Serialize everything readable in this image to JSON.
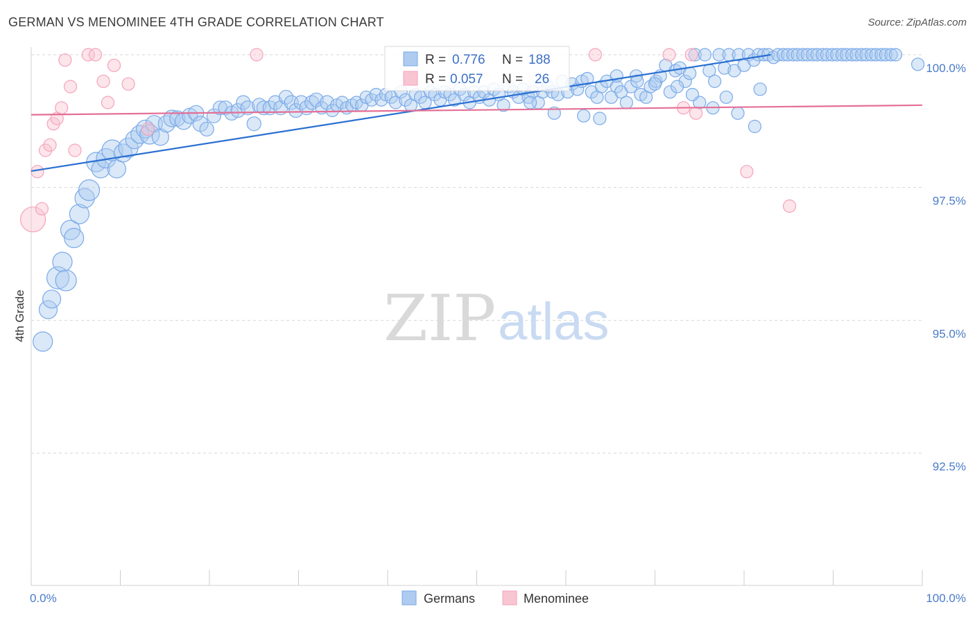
{
  "title": "GERMAN VS MENOMINEE 4TH GRADE CORRELATION CHART",
  "source": "Source: ZipAtlas.com",
  "watermark": {
    "zip": "ZIP",
    "atlas": "atlas"
  },
  "colors": {
    "german": "#7aaae8",
    "german_line": "#2a6fd1",
    "menominee": "#f4a3ba",
    "menominee_line": "#e46f96",
    "tick_label": "#4a7bc8"
  },
  "chart_data": {
    "type": "scatter",
    "title": "GERMAN VS MENOMINEE 4TH GRADE CORRELATION CHART",
    "xlabel": "",
    "ylabel": "4th Grade",
    "xlim": [
      0,
      100
    ],
    "ylim": [
      90.2,
      100.4
    ],
    "x_tick_labels": [
      "0.0%",
      "100.0%"
    ],
    "y_ticks": [
      92.5,
      95.0,
      97.5,
      100.0
    ],
    "y_tick_labels": [
      "92.5%",
      "95.0%",
      "97.5%",
      "100.0%"
    ],
    "grid": "horizontal-dashed",
    "legend_position": "bottom-center",
    "stats": [
      {
        "r_label": "R =",
        "r_value": "0.776",
        "n_label": "N =",
        "n_value": "188"
      },
      {
        "r_label": "R =",
        "r_value": "0.057",
        "n_label": "N =",
        "n_value": "26"
      }
    ],
    "series": [
      {
        "name": "Germans",
        "trend": {
          "x": [
            0,
            83
          ],
          "y": [
            97.81,
            100.0
          ]
        },
        "points": [
          [
            1.3,
            94.6,
            14
          ],
          [
            1.9,
            95.2,
            13
          ],
          [
            2.3,
            95.4,
            13
          ],
          [
            3.0,
            95.8,
            16
          ],
          [
            3.5,
            96.1,
            14
          ],
          [
            3.9,
            95.75,
            15
          ],
          [
            4.4,
            96.7,
            14
          ],
          [
            4.8,
            96.55,
            14
          ],
          [
            5.4,
            97.0,
            14
          ],
          [
            6.0,
            97.3,
            14
          ],
          [
            6.5,
            97.45,
            15
          ],
          [
            7.3,
            97.98,
            14
          ],
          [
            7.8,
            97.85,
            13
          ],
          [
            8.4,
            98.05,
            14
          ],
          [
            9.1,
            98.2,
            15
          ],
          [
            9.6,
            97.85,
            13
          ],
          [
            10.3,
            98.15,
            13
          ],
          [
            10.9,
            98.25,
            14
          ],
          [
            11.6,
            98.4,
            13
          ],
          [
            12.2,
            98.5,
            13
          ],
          [
            12.8,
            98.6,
            13
          ],
          [
            13.3,
            98.5,
            14
          ],
          [
            13.8,
            98.7,
            12
          ],
          [
            14.5,
            98.45,
            12
          ],
          [
            15.2,
            98.7,
            12
          ],
          [
            15.8,
            98.8,
            12
          ],
          [
            16.4,
            98.8,
            11
          ],
          [
            17.1,
            98.75,
            12
          ],
          [
            17.8,
            98.85,
            11
          ],
          [
            18.5,
            98.9,
            11
          ],
          [
            19.0,
            98.7,
            11
          ],
          [
            19.7,
            98.6,
            10
          ],
          [
            20.5,
            98.85,
            10
          ],
          [
            21.2,
            99.0,
            10
          ],
          [
            21.8,
            99.0,
            10
          ],
          [
            22.5,
            98.9,
            10
          ],
          [
            23.2,
            98.95,
            10
          ],
          [
            23.8,
            99.1,
            10
          ],
          [
            24.3,
            99.0,
            10
          ],
          [
            25.0,
            98.7,
            10
          ],
          [
            25.6,
            99.05,
            10
          ],
          [
            26.1,
            99.0,
            10
          ],
          [
            26.8,
            99.0,
            10
          ],
          [
            27.4,
            99.1,
            10
          ],
          [
            28.0,
            99.0,
            10
          ],
          [
            28.6,
            99.2,
            10
          ],
          [
            29.2,
            99.1,
            10
          ],
          [
            29.7,
            98.95,
            10
          ],
          [
            30.3,
            99.1,
            10
          ],
          [
            30.9,
            99.0,
            10
          ],
          [
            31.5,
            99.1,
            10
          ],
          [
            32.0,
            99.15,
            10
          ],
          [
            32.6,
            99.0,
            9
          ],
          [
            33.2,
            99.1,
            10
          ],
          [
            33.8,
            98.95,
            9
          ],
          [
            34.3,
            99.05,
            9
          ],
          [
            34.9,
            99.1,
            9
          ],
          [
            35.4,
            99.0,
            9
          ],
          [
            36.0,
            99.05,
            9
          ],
          [
            36.5,
            99.1,
            9
          ],
          [
            37.1,
            99.05,
            9
          ],
          [
            37.6,
            99.2,
            9
          ],
          [
            38.2,
            99.15,
            9
          ],
          [
            38.7,
            99.25,
            9
          ],
          [
            39.3,
            99.15,
            9
          ],
          [
            39.8,
            99.25,
            9
          ],
          [
            40.4,
            99.2,
            9
          ],
          [
            40.9,
            99.1,
            9
          ],
          [
            41.5,
            99.3,
            9
          ],
          [
            42.0,
            99.15,
            9
          ],
          [
            42.6,
            99.05,
            9
          ],
          [
            43.1,
            99.25,
            9
          ],
          [
            43.7,
            99.2,
            9
          ],
          [
            44.2,
            99.1,
            9
          ],
          [
            44.8,
            99.3,
            9
          ],
          [
            45.3,
            99.25,
            9
          ],
          [
            45.9,
            99.15,
            9
          ],
          [
            46.4,
            99.3,
            9
          ],
          [
            47.0,
            99.25,
            9
          ],
          [
            47.5,
            99.15,
            9
          ],
          [
            48.1,
            99.35,
            9
          ],
          [
            48.6,
            99.25,
            9
          ],
          [
            49.2,
            99.1,
            9
          ],
          [
            49.7,
            99.3,
            9
          ],
          [
            50.3,
            99.2,
            9
          ],
          [
            50.8,
            99.3,
            9
          ],
          [
            51.4,
            99.15,
            9
          ],
          [
            51.9,
            99.35,
            9
          ],
          [
            52.5,
            99.25,
            9
          ],
          [
            53.0,
            99.05,
            9
          ],
          [
            53.6,
            99.4,
            9
          ],
          [
            54.1,
            99.3,
            9
          ],
          [
            54.7,
            99.2,
            9
          ],
          [
            55.2,
            99.35,
            9
          ],
          [
            55.8,
            99.2,
            9
          ],
          [
            56.3,
            99.3,
            9
          ],
          [
            56.9,
            99.1,
            9
          ],
          [
            57.4,
            99.3,
            9
          ],
          [
            58.0,
            99.4,
            9
          ],
          [
            58.5,
            99.3,
            9
          ],
          [
            59.1,
            99.25,
            9
          ],
          [
            59.6,
            99.5,
            9
          ],
          [
            60.2,
            99.3,
            9
          ],
          [
            60.7,
            99.45,
            9
          ],
          [
            61.3,
            99.35,
            9
          ],
          [
            61.8,
            99.5,
            9
          ],
          [
            62.4,
            99.55,
            9
          ],
          [
            62.9,
            99.3,
            9
          ],
          [
            63.5,
            99.2,
            9
          ],
          [
            64.0,
            99.4,
            9
          ],
          [
            64.6,
            99.5,
            9
          ],
          [
            65.1,
            99.2,
            9
          ],
          [
            65.7,
            99.4,
            9
          ],
          [
            66.2,
            99.3,
            9
          ],
          [
            66.8,
            99.1,
            9
          ],
          [
            67.3,
            99.4,
            9
          ],
          [
            67.9,
            99.6,
            9
          ],
          [
            68.4,
            99.25,
            9
          ],
          [
            69.0,
            99.2,
            9
          ],
          [
            69.5,
            99.4,
            9
          ],
          [
            70.1,
            99.5,
            9
          ],
          [
            70.6,
            99.6,
            9
          ],
          [
            71.2,
            99.8,
            9
          ],
          [
            71.7,
            99.3,
            9
          ],
          [
            72.3,
            99.7,
            9
          ],
          [
            72.8,
            99.75,
            9
          ],
          [
            73.4,
            99.5,
            9
          ],
          [
            73.9,
            99.65,
            9
          ],
          [
            74.5,
            100.0,
            9
          ],
          [
            75.0,
            99.1,
            9
          ],
          [
            75.6,
            100.0,
            9
          ],
          [
            76.1,
            99.7,
            9
          ],
          [
            76.7,
            99.5,
            9
          ],
          [
            77.2,
            100.0,
            9
          ],
          [
            77.8,
            99.75,
            9
          ],
          [
            78.3,
            100.0,
            9
          ],
          [
            78.9,
            99.7,
            9
          ],
          [
            79.4,
            100.0,
            9
          ],
          [
            80.0,
            99.8,
            9
          ],
          [
            80.5,
            100.0,
            9
          ],
          [
            81.1,
            99.9,
            9
          ],
          [
            81.6,
            100.0,
            9
          ],
          [
            82.2,
            100.0,
            9
          ],
          [
            82.7,
            100.0,
            9
          ],
          [
            83.3,
            99.95,
            9
          ],
          [
            83.8,
            100.0,
            9
          ],
          [
            84.4,
            100.0,
            9
          ],
          [
            84.9,
            100.0,
            9
          ],
          [
            85.5,
            100.0,
            9
          ],
          [
            86.0,
            100.0,
            9
          ],
          [
            86.6,
            100.0,
            9
          ],
          [
            87.1,
            100.0,
            9
          ],
          [
            87.7,
            100.0,
            9
          ],
          [
            88.2,
            100.0,
            9
          ],
          [
            88.8,
            100.0,
            9
          ],
          [
            89.3,
            100.0,
            9
          ],
          [
            89.9,
            100.0,
            9
          ],
          [
            90.4,
            100.0,
            9
          ],
          [
            91.0,
            100.0,
            9
          ],
          [
            91.5,
            100.0,
            9
          ],
          [
            92.1,
            100.0,
            9
          ],
          [
            92.6,
            100.0,
            9
          ],
          [
            93.2,
            100.0,
            9
          ],
          [
            93.7,
            100.0,
            9
          ],
          [
            94.3,
            100.0,
            9
          ],
          [
            94.8,
            100.0,
            9
          ],
          [
            95.4,
            100.0,
            9
          ],
          [
            95.9,
            100.0,
            9
          ],
          [
            96.5,
            100.0,
            9
          ],
          [
            97.0,
            100.0,
            9
          ],
          [
            99.5,
            99.82,
            9
          ],
          [
            56.0,
            99.1,
            9
          ],
          [
            58.7,
            98.9,
            9
          ],
          [
            62.0,
            98.85,
            9
          ],
          [
            63.8,
            98.8,
            9
          ],
          [
            78.0,
            99.2,
            9
          ],
          [
            79.3,
            98.9,
            9
          ],
          [
            81.2,
            98.65,
            9
          ],
          [
            81.8,
            99.35,
            9
          ],
          [
            65.7,
            99.6,
            9
          ],
          [
            68.0,
            99.5,
            9
          ],
          [
            70.0,
            99.45,
            9
          ],
          [
            72.5,
            99.4,
            9
          ],
          [
            74.2,
            99.25,
            9
          ],
          [
            76.5,
            99.0,
            9
          ]
        ]
      },
      {
        "name": "Menominee",
        "trend": {
          "x": [
            0,
            100
          ],
          "y": [
            98.87,
            99.05
          ]
        },
        "points": [
          [
            0.2,
            96.9,
            18
          ],
          [
            0.7,
            97.8,
            9
          ],
          [
            1.2,
            97.1,
            9
          ],
          [
            1.6,
            98.2,
            9
          ],
          [
            2.1,
            98.3,
            9
          ],
          [
            2.5,
            98.7,
            9
          ],
          [
            2.9,
            98.8,
            9
          ],
          [
            3.4,
            99.0,
            9
          ],
          [
            3.8,
            99.9,
            9
          ],
          [
            4.4,
            99.4,
            9
          ],
          [
            4.9,
            98.2,
            9
          ],
          [
            6.4,
            100.0,
            9
          ],
          [
            7.2,
            100.0,
            9
          ],
          [
            8.1,
            99.5,
            9
          ],
          [
            8.6,
            99.1,
            9
          ],
          [
            9.3,
            99.8,
            9
          ],
          [
            10.9,
            99.45,
            9
          ],
          [
            13.1,
            98.6,
            9
          ],
          [
            25.3,
            100.0,
            9
          ],
          [
            63.3,
            100.0,
            9
          ],
          [
            71.6,
            100.0,
            9
          ],
          [
            74.1,
            100.0,
            9
          ],
          [
            73.2,
            99.0,
            9
          ],
          [
            74.6,
            98.9,
            9
          ],
          [
            80.3,
            97.8,
            9
          ],
          [
            85.1,
            97.15,
            9
          ]
        ]
      }
    ]
  }
}
